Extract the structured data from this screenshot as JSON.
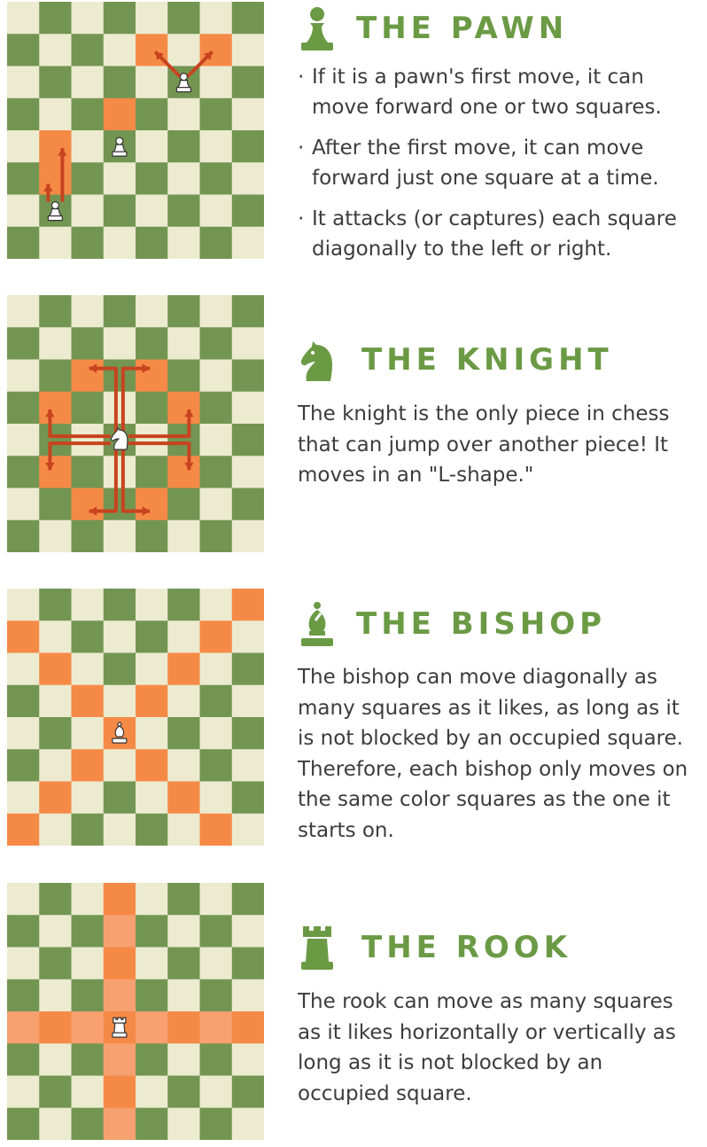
{
  "colors": {
    "light": "#ecebd0",
    "dark": "#739552",
    "highlight": "#f58a47",
    "highlight_soft": "#f7a070",
    "arrow": "#c8431f",
    "title": "#6b9a45",
    "text": "#3c3c3c"
  },
  "sections": {
    "pawn": {
      "title": "THE PAWN",
      "icon": "pawn-icon",
      "bullets": [
        "If it is a pawn's first move, it can move forward one or two squares.",
        "After the first move, it can move forward just one square at a time.",
        "It attacks (or captures) each square diagonally to the left or right."
      ]
    },
    "knight": {
      "title": "THE KNIGHT",
      "icon": "knight-icon",
      "text": "The knight is the only piece in chess that can jump over another piece! It moves in an \"L-shape.\""
    },
    "bishop": {
      "title": "THE BISHOP",
      "icon": "bishop-icon",
      "text": "The bishop can move diagonally as many squares as it likes, as long as it is not blocked by an occupied square. Therefore, each bishop only moves on the same color squares as the one it starts on."
    },
    "rook": {
      "title": "THE ROOK",
      "icon": "rook-icon",
      "text": "The rook can move as many squares as it likes horizontally or vertically as long as it is not blocked by an occupied square."
    }
  }
}
